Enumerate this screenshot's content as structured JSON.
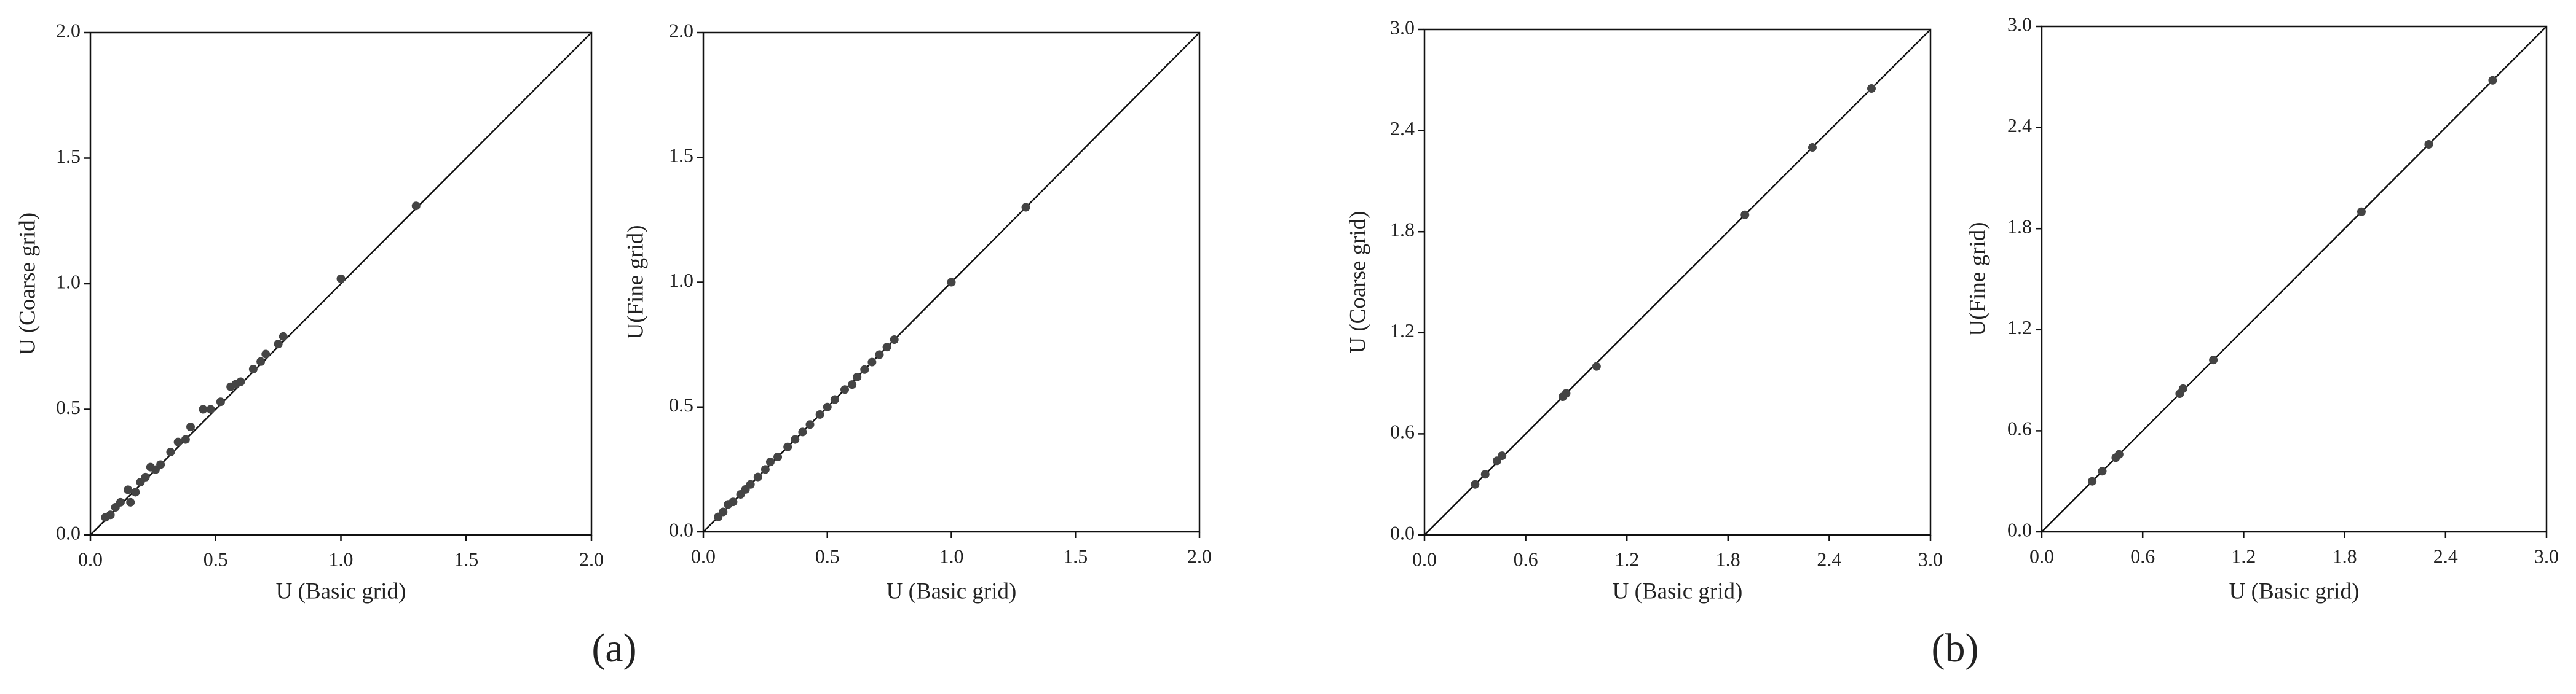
{
  "chart_data": [
    {
      "type": "scatter",
      "x_label": "U (Basic grid)",
      "y_label": "U (Coarse grid)",
      "color": "#444444",
      "x": [
        0.06,
        0.08,
        0.1,
        0.12,
        0.15,
        0.16,
        0.18,
        0.2,
        0.22,
        0.24,
        0.26,
        0.28,
        0.32,
        0.35,
        0.38,
        0.4,
        0.45,
        0.48,
        0.52,
        0.56,
        0.58,
        0.6,
        0.65,
        0.68,
        0.7,
        0.75,
        0.77,
        1.0,
        1.3
      ],
      "y": [
        0.07,
        0.08,
        0.11,
        0.13,
        0.18,
        0.13,
        0.17,
        0.21,
        0.23,
        0.27,
        0.26,
        0.28,
        0.33,
        0.37,
        0.38,
        0.43,
        0.5,
        0.5,
        0.53,
        0.59,
        0.6,
        0.61,
        0.66,
        0.69,
        0.72,
        0.76,
        0.79,
        1.02,
        1.31
      ],
      "xlim": [
        0,
        2
      ],
      "ylim": [
        0,
        2
      ],
      "xticks": [
        {
          "value": 0,
          "label": "0.0"
        },
        0.5,
        {
          "value": 1,
          "label": "1.0"
        },
        1.5,
        {
          "value": 2,
          "label": "2.0"
        }
      ],
      "yticks": [
        {
          "value": 0,
          "label": "0.0"
        },
        0.5,
        {
          "value": 1,
          "label": "1.0"
        },
        1.5,
        {
          "value": 2,
          "label": "2.0"
        }
      ]
    },
    {
      "type": "scatter",
      "x_label": "U (Basic grid)",
      "y_label": "U(Fine grid)",
      "color": "#444444",
      "x": [
        0.06,
        0.08,
        0.1,
        0.12,
        0.15,
        0.17,
        0.19,
        0.22,
        0.25,
        0.27,
        0.3,
        0.34,
        0.37,
        0.4,
        0.43,
        0.47,
        0.5,
        0.53,
        0.57,
        0.6,
        0.62,
        0.65,
        0.68,
        0.71,
        0.74,
        0.77,
        1.0,
        1.3
      ],
      "y": [
        0.06,
        0.08,
        0.11,
        0.12,
        0.15,
        0.17,
        0.19,
        0.22,
        0.25,
        0.28,
        0.3,
        0.34,
        0.37,
        0.4,
        0.43,
        0.47,
        0.5,
        0.53,
        0.57,
        0.59,
        0.62,
        0.65,
        0.68,
        0.71,
        0.74,
        0.77,
        1.0,
        1.3
      ],
      "xlim": [
        0,
        2
      ],
      "ylim": [
        0,
        2
      ],
      "xticks": [
        {
          "value": 0,
          "label": "0.0"
        },
        0.5,
        {
          "value": 1,
          "label": "1.0"
        },
        1.5,
        {
          "value": 2,
          "label": "2.0"
        }
      ],
      "yticks": [
        {
          "value": 0,
          "label": "0.0"
        },
        0.5,
        {
          "value": 1,
          "label": "1.0"
        },
        1.5,
        {
          "value": 2,
          "label": "2.0"
        }
      ]
    },
    {
      "type": "scatter",
      "x_label": "U (Basic grid)",
      "y_label": "U (Coarse grid)",
      "color": "#444444",
      "x": [
        0.3,
        0.36,
        0.43,
        0.46,
        0.82,
        0.84,
        1.02,
        1.9,
        2.3,
        2.65
      ],
      "y": [
        0.3,
        0.36,
        0.44,
        0.47,
        0.82,
        0.84,
        1.0,
        1.9,
        2.3,
        2.65
      ],
      "xlim": [
        0,
        3
      ],
      "ylim": [
        0,
        3
      ],
      "xticks": [
        {
          "value": 0,
          "label": "0.0"
        },
        0.6,
        1.2,
        1.8,
        2.4,
        {
          "value": 3,
          "label": "3.0"
        }
      ],
      "yticks": [
        {
          "value": 0,
          "label": "0.0"
        },
        0.6,
        1.2,
        1.8,
        2.4,
        {
          "value": 3,
          "label": "3.0"
        }
      ]
    },
    {
      "type": "scatter",
      "x_label": "U (Basic grid)",
      "y_label": "U(Fine grid)",
      "color": "#444444",
      "x": [
        0.3,
        0.36,
        0.44,
        0.46,
        0.82,
        0.84,
        1.02,
        1.9,
        2.3,
        2.68
      ],
      "y": [
        0.3,
        0.36,
        0.44,
        0.46,
        0.82,
        0.85,
        1.02,
        1.9,
        2.3,
        2.68
      ],
      "xlim": [
        0,
        3
      ],
      "ylim": [
        0,
        3
      ],
      "xticks": [
        {
          "value": 0,
          "label": "0.0"
        },
        0.6,
        1.2,
        1.8,
        2.4,
        {
          "value": 3,
          "label": "3.0"
        }
      ],
      "yticks": [
        {
          "value": 0,
          "label": "0.0"
        },
        0.6,
        1.2,
        1.8,
        2.4,
        {
          "value": 3,
          "label": "3.0"
        }
      ]
    }
  ],
  "captions": [
    "(a)",
    "(b)"
  ]
}
